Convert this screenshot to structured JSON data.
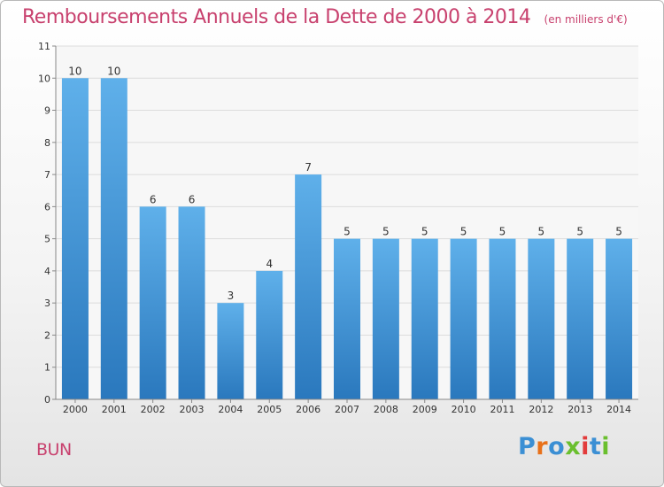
{
  "header": {
    "title": "Remboursements Annuels de la Dette de 2000 à 2014",
    "subtitle": "(en milliers d'€)"
  },
  "footer": {
    "place": "BUN",
    "logo_text": "Proxiti",
    "logo_colors": [
      "#3b8fd4",
      "#e8711a",
      "#3b8fd4",
      "#6abf2e",
      "#e23b3b",
      "#3b8fd4",
      "#6abf2e"
    ]
  },
  "chart_data": {
    "type": "bar",
    "title": "Remboursements Annuels de la Dette de 2000 à 2014",
    "subtitle": "(en milliers d'€)",
    "xlabel": "",
    "ylabel": "",
    "categories": [
      "2000",
      "2001",
      "2002",
      "2003",
      "2004",
      "2005",
      "2006",
      "2007",
      "2008",
      "2009",
      "2010",
      "2011",
      "2012",
      "2013",
      "2014"
    ],
    "values": [
      10,
      10,
      6,
      6,
      3,
      4,
      7,
      5,
      5,
      5,
      5,
      5,
      5,
      5,
      5
    ],
    "ylim": [
      0,
      11
    ],
    "yticks": [
      0,
      1,
      2,
      3,
      4,
      5,
      6,
      7,
      8,
      9,
      10,
      11
    ],
    "grid": true,
    "bar_color": "#3a8fd6",
    "bar_color_light": "#5fb0ea"
  }
}
